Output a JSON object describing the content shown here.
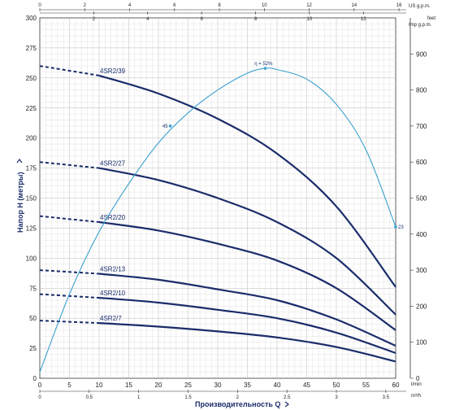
{
  "chart_data": {
    "type": "line",
    "title": "",
    "xlabel": "Производительность Q",
    "ylabel": "Напор Н (метры)",
    "x_unit": "l/min",
    "x_secondary_unit": "m³/h",
    "x_top_us_unit": "US g.p.m.",
    "x_top_imp_unit": "Imp g.p.m.",
    "y_right_unit": "feet",
    "xlim": [
      0,
      60
    ],
    "ylim": [
      0,
      300
    ],
    "y_right_lim": [
      0,
      1000
    ],
    "grid": true,
    "x_ticks": [
      "0",
      "5",
      "10",
      "15",
      "20",
      "25",
      "30",
      "35",
      "40",
      "45",
      "50",
      "55",
      "60"
    ],
    "y_ticks": [
      "0",
      "25",
      "50",
      "75",
      "100",
      "125",
      "150",
      "175",
      "200",
      "225",
      "250",
      "275",
      "300"
    ],
    "y_right_ticks": [
      "0",
      "100",
      "200",
      "300",
      "400",
      "500",
      "600",
      "700",
      "800",
      "900"
    ],
    "x_m3h_ticks": [
      "0",
      "0.5",
      "1",
      "1.5",
      "2",
      "2.5",
      "3",
      "3.5"
    ],
    "x_us_ticks": [
      "0",
      "2",
      "4",
      "6",
      "8",
      "10",
      "12",
      "14",
      "16"
    ],
    "x_imp_ticks": [
      "2",
      "4",
      "6",
      "8",
      "10",
      "12"
    ],
    "series": [
      {
        "name": "4SR2/39",
        "dashed_until": 10,
        "x": [
          0,
          10,
          20,
          30,
          40,
          50,
          60
        ],
        "values": [
          260,
          252,
          237,
          216,
          187,
          143,
          76
        ]
      },
      {
        "name": "4SR2/27",
        "dashed_until": 10,
        "x": [
          0,
          10,
          20,
          30,
          40,
          50,
          60
        ],
        "values": [
          180,
          175,
          165,
          150,
          130,
          100,
          53
        ]
      },
      {
        "name": "4SR2/20",
        "dashed_until": 10,
        "x": [
          0,
          10,
          20,
          30,
          40,
          50,
          60
        ],
        "values": [
          135,
          130,
          123,
          112,
          98,
          75,
          40
        ]
      },
      {
        "name": "4SR2/13",
        "dashed_until": 10,
        "x": [
          0,
          10,
          20,
          30,
          40,
          50,
          60
        ],
        "values": [
          90,
          87,
          82,
          74,
          65,
          49,
          27
        ]
      },
      {
        "name": "4SR2/10",
        "dashed_until": 10,
        "x": [
          0,
          10,
          20,
          30,
          40,
          50,
          60
        ],
        "values": [
          70,
          67,
          63,
          57,
          50,
          38,
          21
        ]
      },
      {
        "name": "4SR2/7",
        "dashed_until": 10,
        "x": [
          0,
          10,
          20,
          30,
          40,
          50,
          60
        ],
        "values": [
          48,
          46,
          43,
          39,
          34,
          26,
          14
        ]
      }
    ],
    "efficiency": {
      "label": "η = 52%",
      "marker_labels": [
        "45",
        "23"
      ],
      "x": [
        0,
        5,
        10,
        15,
        20,
        25,
        30,
        35,
        38,
        40,
        45,
        50,
        55,
        60
      ],
      "values": [
        5,
        70,
        122,
        162,
        196,
        221,
        240,
        254,
        258,
        257,
        249,
        228,
        190,
        126
      ],
      "markers": [
        {
          "x": 22,
          "y": 210,
          "label": "45"
        },
        {
          "x": 38,
          "y": 258,
          "label": "η = 52%"
        },
        {
          "x": 60,
          "y": 126,
          "label": "23"
        }
      ]
    },
    "colors": {
      "curves": "#1a2c6a",
      "efficiency": "#3aa0d0",
      "grid": "#c8c8c8"
    }
  }
}
